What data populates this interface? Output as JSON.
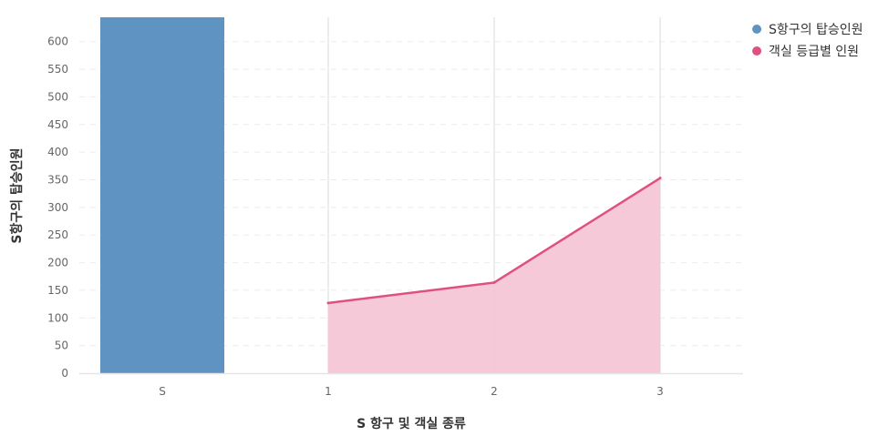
{
  "chart_data": {
    "type": "bar+area",
    "categories": [
      "S",
      "1",
      "2",
      "3"
    ],
    "xlabel": "S 항구 및 객실 종류",
    "ylabel": "S항구의 탑승인원",
    "ylim": [
      0,
      644
    ],
    "yticks": [
      0,
      50,
      100,
      150,
      200,
      250,
      300,
      350,
      400,
      450,
      500,
      550,
      600
    ],
    "grid": true,
    "legend_position": "top-right",
    "series": [
      {
        "name": "S항구의 탑승인원",
        "type": "bar",
        "color": "#5f93c1",
        "points": [
          {
            "x": "S",
            "y": 644
          }
        ]
      },
      {
        "name": "객실 등급별 인원",
        "type": "area",
        "color": "#e0507f",
        "fill": "#f4c3d4",
        "points": [
          {
            "x": "1",
            "y": 127
          },
          {
            "x": "2",
            "y": 164
          },
          {
            "x": "3",
            "y": 353
          }
        ]
      }
    ]
  }
}
